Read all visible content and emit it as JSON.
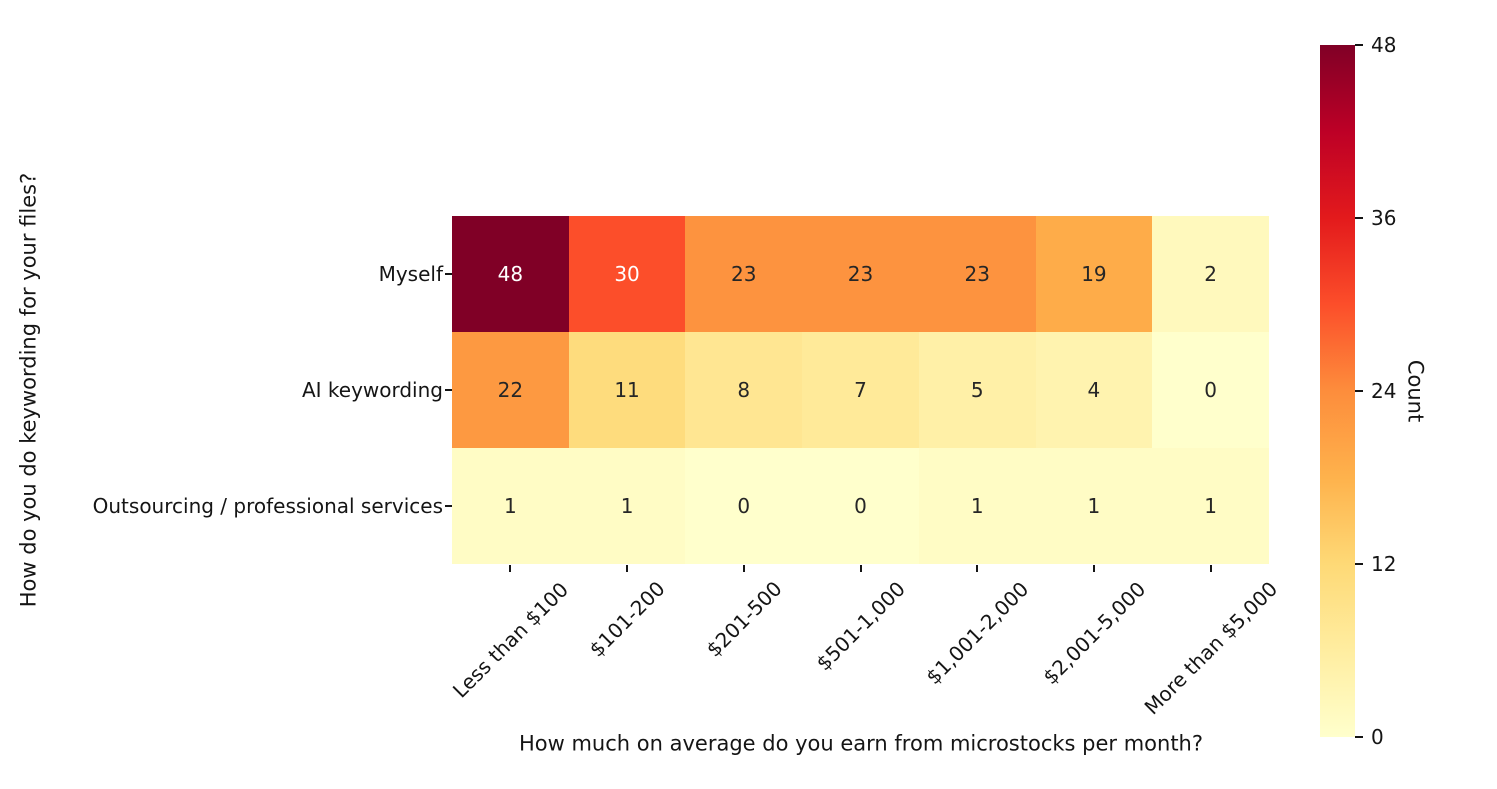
{
  "chart_data": {
    "type": "heatmap",
    "title": "",
    "xlabel": "How much on average do you earn from microstocks per month?",
    "ylabel": "How do you do keywording for your files?",
    "x_categories": [
      "Less than $100",
      "$101-200",
      "$201-500",
      "$501-1,000",
      "$1,001-2,000",
      "$2,001-5,000",
      "More than $5,000"
    ],
    "y_categories": [
      "Myself",
      "AI keywording",
      "Outsourcing / professional services"
    ],
    "values": [
      [
        48,
        30,
        23,
        23,
        23,
        19,
        2
      ],
      [
        22,
        11,
        8,
        7,
        5,
        4,
        0
      ],
      [
        1,
        1,
        0,
        0,
        1,
        1,
        1
      ]
    ],
    "value_range": [
      0,
      48
    ],
    "annotated": true,
    "grid": false,
    "colormap": "YlOrRd",
    "cell_colors": [
      [
        "#800026",
        "#fc4e2a",
        "#fd933f",
        "#fd933f",
        "#fd933f",
        "#feac49",
        "#fff9bd"
      ],
      [
        "#fd9941",
        "#fedc7d",
        "#ffe692",
        "#ffea99",
        "#fff0a7",
        "#fff3af",
        "#ffffcc"
      ],
      [
        "#fffcc5",
        "#fffcc5",
        "#ffffcc",
        "#ffffcc",
        "#fffcc5",
        "#fffcc5",
        "#fffcc5"
      ]
    ],
    "cell_text_colors": [
      [
        "#ffffff",
        "#ffffff",
        "#262626",
        "#262626",
        "#262626",
        "#262626",
        "#262626"
      ],
      [
        "#262626",
        "#262626",
        "#262626",
        "#262626",
        "#262626",
        "#262626",
        "#262626"
      ],
      [
        "#262626",
        "#262626",
        "#262626",
        "#262626",
        "#262626",
        "#262626",
        "#262626"
      ]
    ],
    "colorbar": {
      "label": "Count",
      "ticks": [
        48,
        36,
        24,
        12,
        0
      ],
      "min": 0,
      "max": 48,
      "position": "right",
      "gradient_stops": [
        "#ffffcc",
        "#ffeda0",
        "#fed976",
        "#feb24c",
        "#fd8d3c",
        "#fc4e2a",
        "#e31a1c",
        "#bd0026",
        "#800026"
      ]
    },
    "colors": {
      "background": "#ffffff",
      "axis_text": "#151515",
      "annotation_dark": "#262626",
      "annotation_light": "#ffffff"
    }
  }
}
